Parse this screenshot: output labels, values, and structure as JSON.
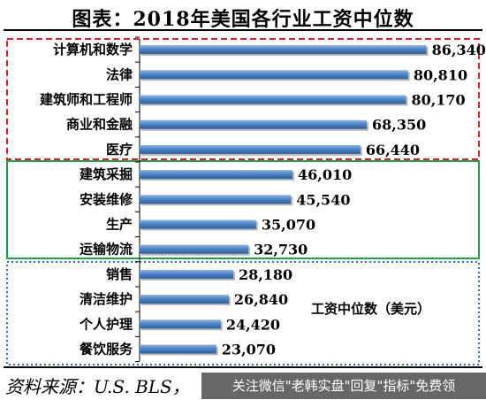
{
  "title": "图表：2018年美国各行业工资中位数",
  "source": "资料来源：U.S. BLS，",
  "watermark_text": "关注微信\"老韩实盘\"回复\"指标\"免费领",
  "colors": {
    "bar_dark": "#2e5f9e",
    "bar_light": "#8fb4e0",
    "group_red": "#e0202a",
    "group_green": "#22a04b",
    "group_blue": "#2d6fc6"
  },
  "chart_data": {
    "type": "bar",
    "orientation": "horizontal",
    "title": "图表：2018年美国各行业工资中位数",
    "unit_note": "工资中位数（美元）",
    "xlim": [
      0,
      90000
    ],
    "grid": false,
    "categories": [
      "计算机和数学",
      "法律",
      "建筑师和工程师",
      "商业和金融",
      "医疗",
      "建筑采掘",
      "安装维修",
      "生产",
      "运输物流",
      "销售",
      "清洁维护",
      "个人护理",
      "餐饮服务"
    ],
    "values": [
      86340,
      80810,
      80170,
      68350,
      66440,
      46010,
      45540,
      35070,
      32730,
      28180,
      26840,
      24420,
      23070
    ],
    "value_labels": [
      "86,340",
      "80,810",
      "80,170",
      "68,350",
      "66,440",
      "46,010",
      "45,540",
      "35,070",
      "32,730",
      "28,180",
      "26,840",
      "24,420",
      "23,070"
    ],
    "groups": [
      {
        "style": "red-dashed",
        "start": 0,
        "end": 4
      },
      {
        "style": "green-solid",
        "start": 5,
        "end": 8
      },
      {
        "style": "blue-dotted",
        "start": 9,
        "end": 12
      }
    ]
  }
}
